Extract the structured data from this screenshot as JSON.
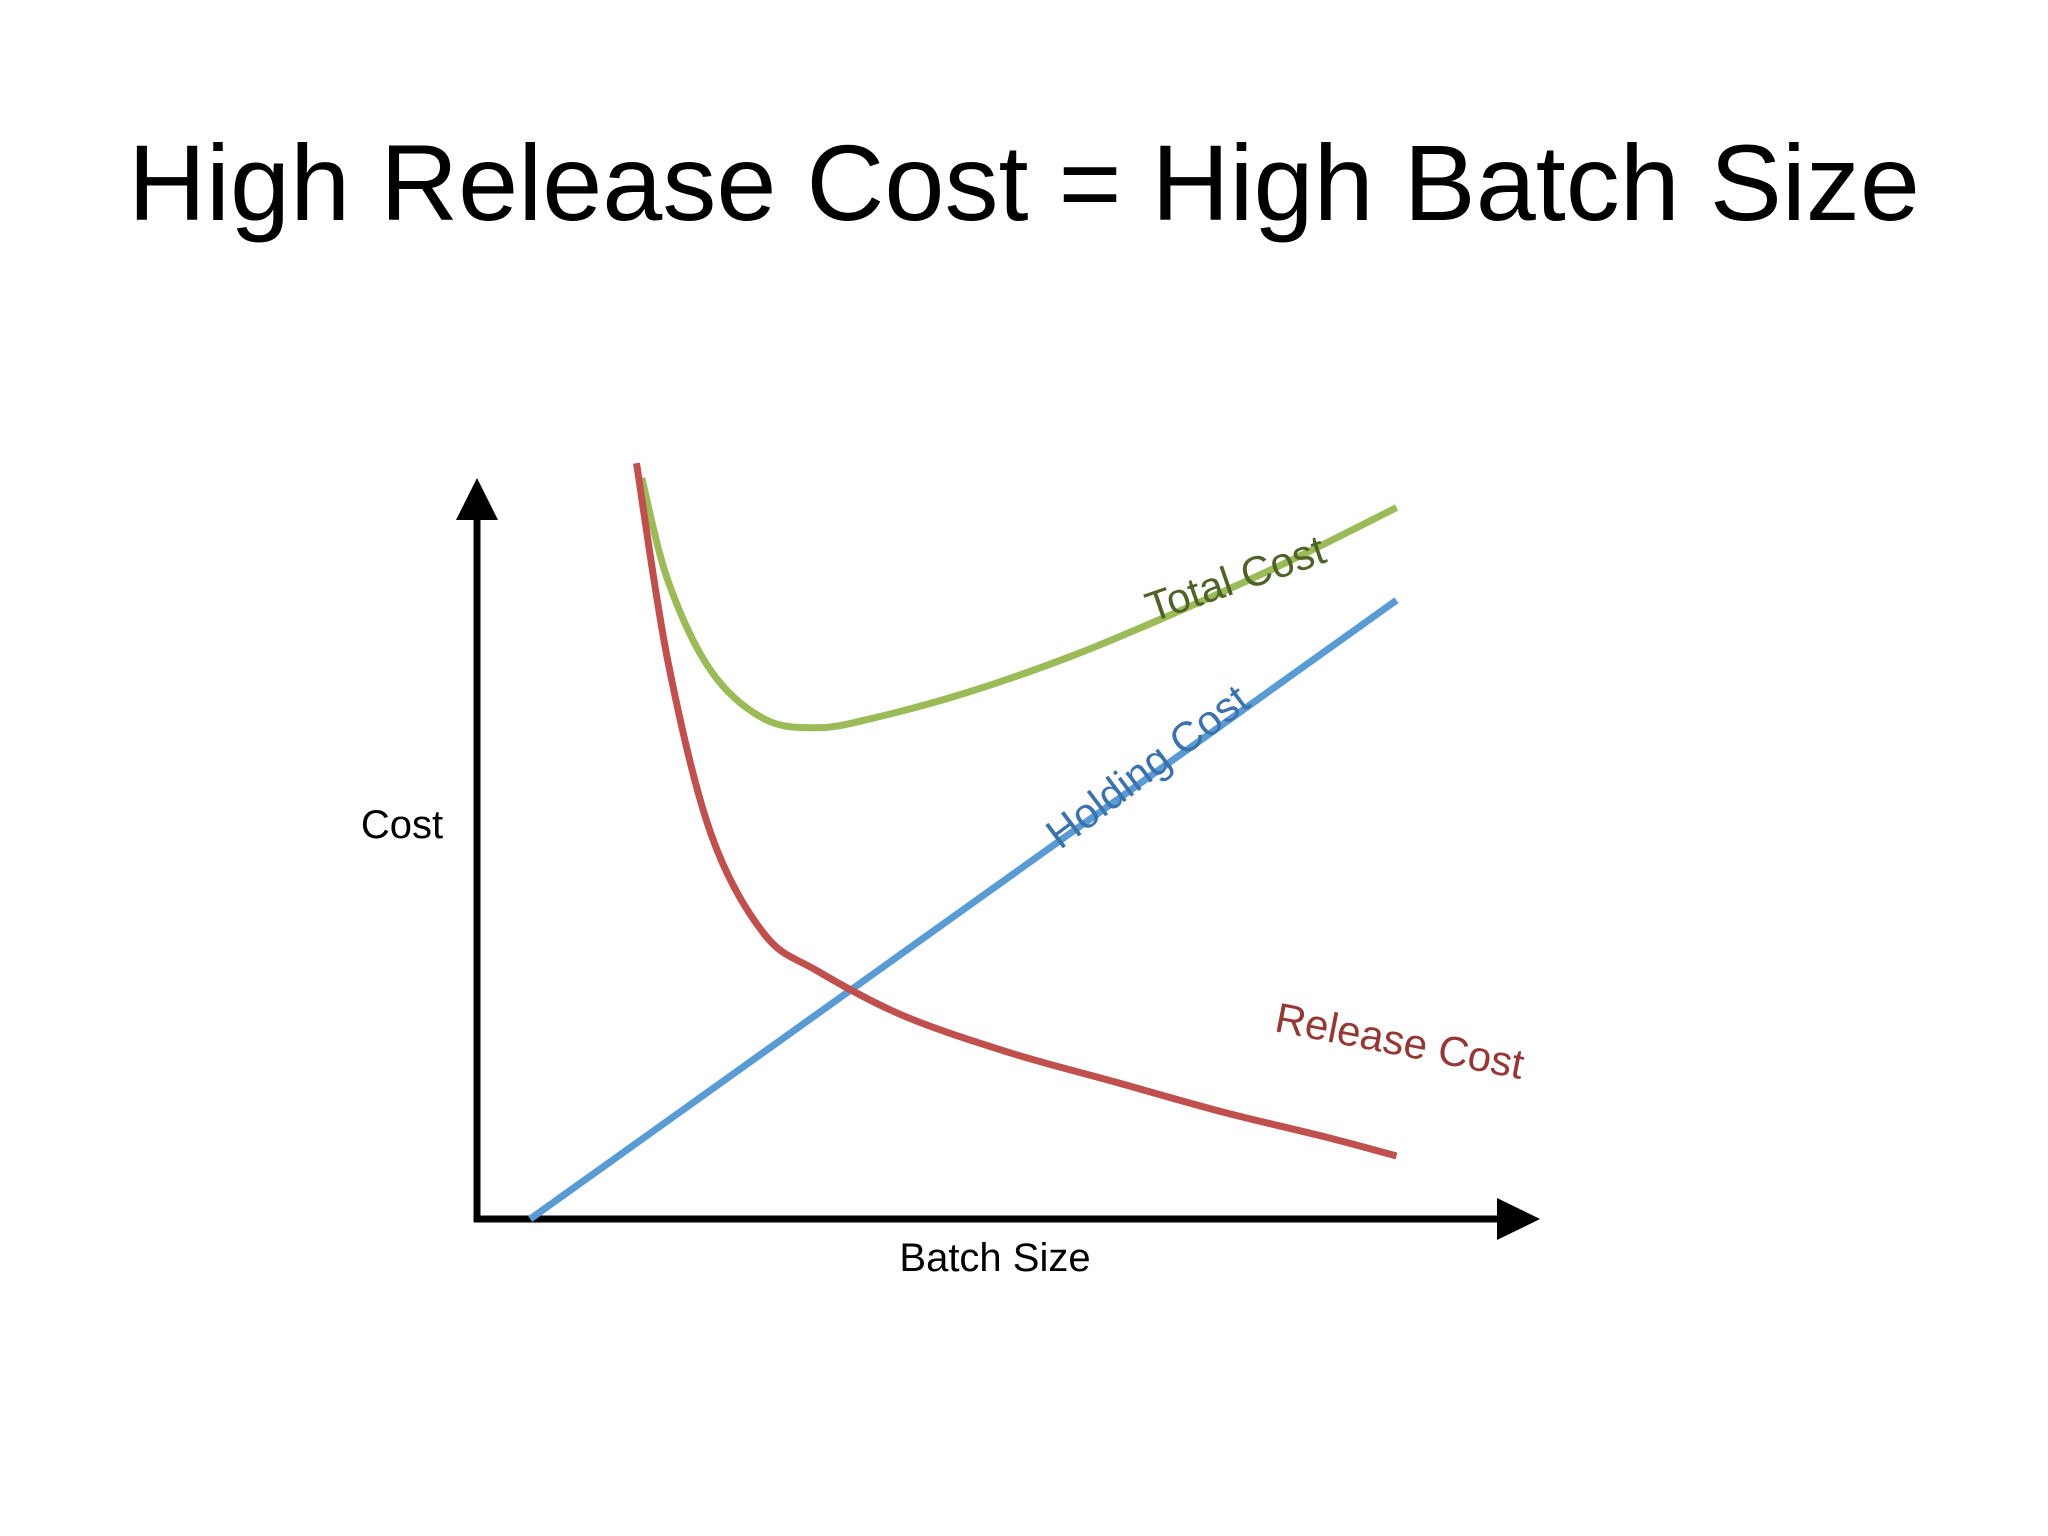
{
  "slide": {
    "title": "High Release Cost = High Batch Size"
  },
  "chart_data": {
    "type": "line",
    "xlabel": "Batch Size",
    "ylabel": "Cost",
    "xlim": [
      0,
      10
    ],
    "ylim": [
      0,
      10
    ],
    "grid": false,
    "axis_ticks": false,
    "legend": "none (series labelled directly on curves)",
    "series": [
      {
        "name": "Total Cost",
        "color": "#9bbb59",
        "label_color": "#4f6228",
        "points": [
          [
            1.55,
            10.0
          ],
          [
            1.8,
            8.6
          ],
          [
            2.2,
            7.4
          ],
          [
            2.7,
            6.75
          ],
          [
            3.2,
            6.63
          ],
          [
            3.7,
            6.75
          ],
          [
            4.6,
            7.1
          ],
          [
            5.6,
            7.6
          ],
          [
            6.6,
            8.2
          ],
          [
            7.6,
            8.85
          ],
          [
            8.65,
            9.6
          ]
        ]
      },
      {
        "name": "Holding Cost",
        "color": "#5b9bd5",
        "label_color": "#3b72ad",
        "points": [
          [
            0.5,
            0.0
          ],
          [
            8.65,
            8.35
          ]
        ]
      },
      {
        "name": "Release Cost",
        "color": "#c0504d",
        "label_color": "#953735",
        "points": [
          [
            1.5,
            10.2
          ],
          [
            1.8,
            7.5
          ],
          [
            2.2,
            5.2
          ],
          [
            2.7,
            3.85
          ],
          [
            3.2,
            3.35
          ],
          [
            4.0,
            2.75
          ],
          [
            5.0,
            2.25
          ],
          [
            6.0,
            1.85
          ],
          [
            7.0,
            1.45
          ],
          [
            8.0,
            1.1
          ],
          [
            8.65,
            0.85
          ]
        ]
      }
    ]
  }
}
